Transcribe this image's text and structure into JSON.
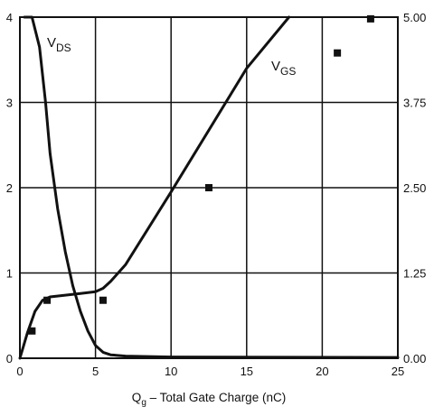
{
  "chart_data": {
    "type": "line",
    "title": "",
    "xlabel": {
      "main": "Q",
      "sub": "g",
      "rest": " – Total Gate Charge (nC)"
    },
    "x_ticks": [
      "0",
      "5",
      "10",
      "15",
      "20",
      "25"
    ],
    "y_left_ticks": [
      "0",
      "1",
      "2",
      "3",
      "4"
    ],
    "y_right_ticks": [
      "0.00",
      "1.25",
      "2.50",
      "3.75",
      "5.00"
    ],
    "xlim": [
      0,
      25
    ],
    "ylim_left": [
      0,
      4
    ],
    "ylim_right": [
      0,
      5
    ],
    "grid": true,
    "legend": "none",
    "colors": {
      "line": "#111111",
      "grid": "#111111",
      "background": "#ffffff"
    },
    "series": [
      {
        "name": "VDS",
        "label_main": "V",
        "label_sub": "DS",
        "axis": "left",
        "x": [
          0.3,
          0.8,
          1.3,
          1.7,
          2.0,
          2.5,
          3.0,
          3.5,
          4.0,
          4.5,
          5.0,
          5.5,
          6.0,
          7.0,
          10.0,
          25.0
        ],
        "y": [
          4.0,
          4.0,
          3.65,
          3.0,
          2.4,
          1.75,
          1.25,
          0.85,
          0.55,
          0.32,
          0.15,
          0.07,
          0.04,
          0.025,
          0.015,
          0.01
        ]
      },
      {
        "name": "VGS",
        "label_main": "V",
        "label_sub": "GS",
        "axis": "left",
        "x": [
          0.0,
          0.5,
          1.0,
          1.5,
          2.0,
          3.0,
          4.0,
          5.0,
          5.5,
          6.0,
          7.0,
          10.0,
          15.0,
          17.8
        ],
        "y": [
          0.0,
          0.3,
          0.55,
          0.68,
          0.72,
          0.74,
          0.76,
          0.78,
          0.82,
          0.9,
          1.1,
          1.95,
          3.4,
          4.0
        ]
      }
    ],
    "markers": {
      "x": [
        0.8,
        1.8,
        5.5,
        12.5,
        21.0,
        23.2
      ],
      "y": [
        0.32,
        0.68,
        0.68,
        2.0,
        3.58,
        3.98
      ]
    }
  }
}
